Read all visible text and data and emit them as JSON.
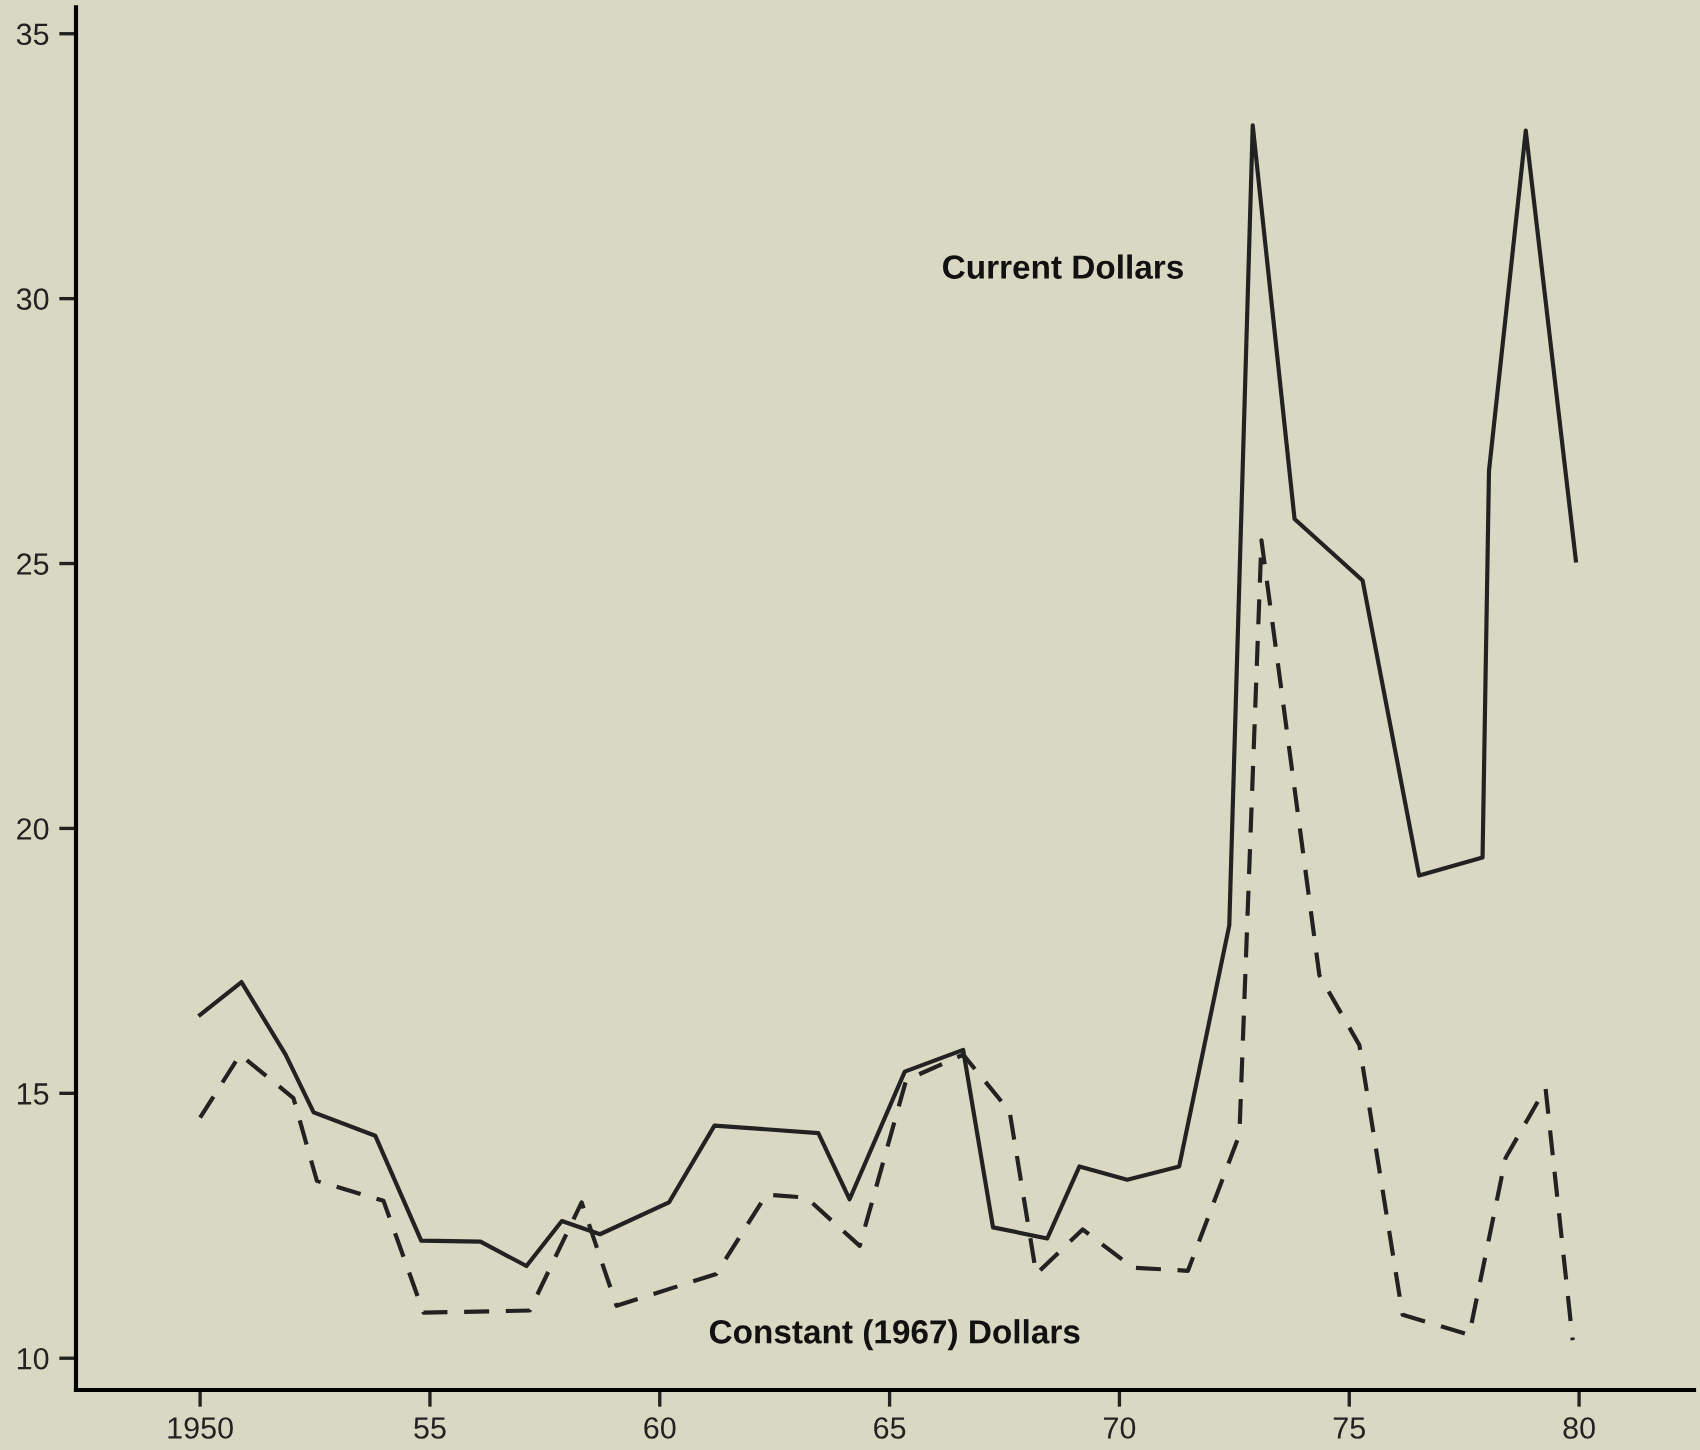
{
  "chart_data": {
    "type": "line",
    "xlim": [
      1947.3,
      1982.5
    ],
    "ylim": [
      9.4,
      35.5
    ],
    "xticks": [
      1950,
      {
        "value": 1955,
        "label": "55"
      },
      {
        "value": 1960,
        "label": "60"
      },
      {
        "value": 1965,
        "label": "65"
      },
      {
        "value": 1970,
        "label": "70"
      },
      {
        "value": 1975,
        "label": "75"
      },
      {
        "value": 1980,
        "label": "80"
      }
    ],
    "yticks": [
      10,
      15,
      20,
      25,
      30,
      35
    ],
    "grid": false,
    "legend": false,
    "marker": "none",
    "series": [
      {
        "name": "Current Dollars",
        "color": "#222222",
        "line_style": "solid",
        "x": [
          1950.0,
          1950.9,
          1951.86,
          1952.47,
          1953.81,
          1954.81,
          1956.1,
          1957.1,
          1957.87,
          1958.7,
          1960.2,
          1961.19,
          1963.45,
          1964.13,
          1965.33,
          1966.6,
          1967.25,
          1968.43,
          1969.13,
          1970.17,
          1971.3,
          1972.39,
          1972.9,
          1973.81,
          1975.29,
          1976.52,
          1977.9,
          1978.04,
          1978.84,
          1979.93
        ],
        "values": [
          16.48,
          17.1,
          15.73,
          14.64,
          14.2,
          12.22,
          12.2,
          11.74,
          12.59,
          12.34,
          12.94,
          14.39,
          14.25,
          13.0,
          15.41,
          15.82,
          12.47,
          12.26,
          13.62,
          13.37,
          13.62,
          18.17,
          33.27,
          25.84,
          24.68,
          19.11,
          19.45,
          26.75,
          33.17,
          25.06
        ]
      },
      {
        "name": "Constant (1967) Dollars",
        "color": "#222222",
        "line_style": "dashed",
        "x": [
          1950.0,
          1950.87,
          1952.03,
          1952.54,
          1953.99,
          1954.86,
          1957.17,
          1958.3,
          1959.06,
          1961.23,
          1962.32,
          1963.19,
          1964.35,
          1965.36,
          1966.6,
          1967.61,
          1968.19,
          1969.2,
          1970.29,
          1971.49,
          1972.61,
          1973.09,
          1974.35,
          1975.22,
          1976.16,
          1977.61,
          1978.4,
          1979.27,
          1979.86
        ],
        "values": [
          14.54,
          15.73,
          14.91,
          13.35,
          12.97,
          10.86,
          10.9,
          12.94,
          10.99,
          11.59,
          13.09,
          13.03,
          12.12,
          15.25,
          15.73,
          14.66,
          11.59,
          12.43,
          11.71,
          11.65,
          14.22,
          25.44,
          17.23,
          15.91,
          10.82,
          10.44,
          13.78,
          15.1,
          10.34
        ]
      }
    ]
  }
}
